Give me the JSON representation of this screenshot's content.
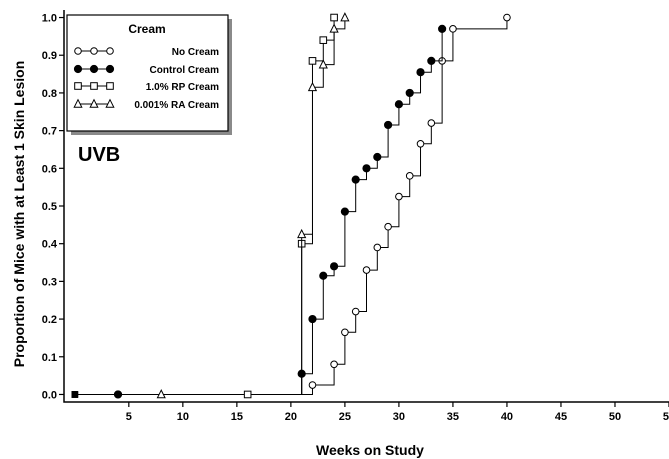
{
  "chart_data": {
    "type": "line",
    "step": true,
    "xlabel": "Weeks on Study",
    "ylabel": "Proportion of Mice with at Least 1 Skin Lesion",
    "xlim": [
      -1,
      55
    ],
    "ylim": [
      -0.02,
      1.02
    ],
    "xticks": [
      5,
      10,
      15,
      20,
      25,
      30,
      35,
      40,
      45,
      50,
      55
    ],
    "yticks": [
      0.0,
      0.1,
      0.2,
      0.3,
      0.4,
      0.5,
      0.6,
      0.7,
      0.8,
      0.9,
      1.0
    ],
    "ytick_labels": [
      "0.0",
      "0.1",
      "0.2",
      "0.3",
      "0.4",
      "0.5",
      "0.6",
      "0.7",
      "0.8",
      "0.9",
      "1.0"
    ],
    "grid": false,
    "annotation": "UVB",
    "legend": {
      "title": "Cream",
      "position": "top-left"
    },
    "series": [
      {
        "name": "No Cream",
        "marker": "circle-open",
        "x": [
          22,
          24,
          25,
          26,
          27,
          28,
          29,
          30,
          31,
          32,
          33,
          34,
          35,
          40
        ],
        "y": [
          0.025,
          0.08,
          0.165,
          0.22,
          0.33,
          0.39,
          0.445,
          0.525,
          0.58,
          0.665,
          0.72,
          0.885,
          0.97,
          1.0
        ]
      },
      {
        "name": "Control Cream",
        "marker": "circle-filled",
        "x": [
          21,
          22,
          23,
          24,
          25,
          26,
          27,
          28,
          29,
          30,
          31,
          32,
          33,
          34
        ],
        "y": [
          0.055,
          0.2,
          0.315,
          0.34,
          0.485,
          0.57,
          0.6,
          0.63,
          0.715,
          0.77,
          0.8,
          0.855,
          0.885,
          0.97
        ]
      },
      {
        "name": "1.0% RP Cream",
        "marker": "square-open",
        "x": [
          21,
          22,
          23,
          24
        ],
        "y": [
          0.4,
          0.885,
          0.94,
          1.0
        ]
      },
      {
        "name": "0.001% RA Cream",
        "marker": "triangle-open",
        "x": [
          21,
          22,
          23,
          24,
          25
        ],
        "y": [
          0.425,
          0.815,
          0.875,
          0.97,
          1.0
        ]
      }
    ],
    "censor_marks": [
      {
        "series": 0,
        "x": [
          0,
          4
        ]
      },
      {
        "series": 1,
        "x": [
          0,
          4
        ]
      },
      {
        "series": 2,
        "x": [
          0,
          16
        ]
      },
      {
        "series": 3,
        "x": [
          0,
          8
        ]
      }
    ]
  }
}
